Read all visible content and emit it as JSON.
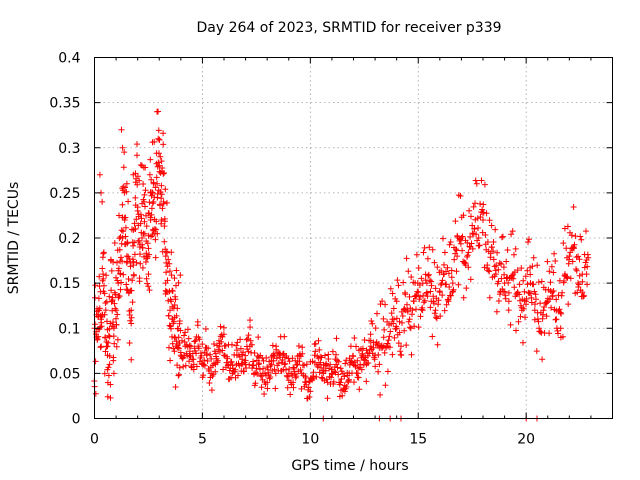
{
  "chart_data": {
    "type": "scatter",
    "title": "Day 264 of 2023, SRMTID for receiver p339",
    "xlabel": "GPS time / hours",
    "ylabel": "SRMTID / TECUs",
    "xlim": [
      0,
      24
    ],
    "ylim": [
      0,
      0.4
    ],
    "xticks": [
      0,
      5,
      10,
      15,
      20
    ],
    "xtick_labels": [
      "0",
      "5",
      "10",
      "15",
      "20"
    ],
    "yticks": [
      0,
      0.05,
      0.1,
      0.15,
      0.2,
      0.25,
      0.3,
      0.35,
      0.4
    ],
    "ytick_labels": [
      "0",
      "0.05",
      "0.1",
      "0.15",
      "0.2",
      "0.25",
      "0.3",
      "0.35",
      "0.4"
    ],
    "grid": true,
    "marker": "plus",
    "color": "#ff0000",
    "series": [
      {
        "name": "SRMTID",
        "x": [
          0.0,
          0.1,
          0.2,
          0.3,
          0.4,
          0.5,
          0.6,
          0.7,
          0.8,
          0.9,
          1.0,
          1.1,
          1.2,
          1.3,
          1.4,
          1.5,
          1.6,
          1.7,
          1.8,
          1.9,
          2.0,
          2.1,
          2.2,
          2.3,
          2.4,
          2.5,
          2.6,
          2.7,
          2.8,
          2.9,
          3.0,
          3.1,
          3.2,
          3.3,
          3.4,
          3.5,
          3.6,
          3.7,
          3.8,
          3.9,
          4.0,
          4.2,
          4.4,
          4.6,
          4.8,
          5.0,
          5.2,
          5.4,
          5.6,
          5.8,
          6.0,
          6.2,
          6.4,
          6.6,
          6.8,
          7.0,
          7.2,
          7.4,
          7.6,
          7.8,
          8.0,
          8.2,
          8.4,
          8.6,
          8.8,
          9.0,
          9.2,
          9.4,
          9.6,
          9.8,
          10.0,
          10.2,
          10.4,
          10.6,
          10.8,
          11.0,
          11.2,
          11.4,
          11.6,
          11.8,
          12.0,
          12.2,
          12.4,
          12.6,
          12.8,
          13.0,
          13.2,
          13.4,
          13.6,
          13.8,
          14.0,
          14.2,
          14.4,
          14.6,
          14.8,
          15.0,
          15.2,
          15.4,
          15.6,
          15.8,
          16.0,
          16.2,
          16.4,
          16.6,
          16.8,
          17.0,
          17.2,
          17.4,
          17.6,
          17.8,
          18.0,
          18.2,
          18.4,
          18.6,
          18.8,
          19.0,
          19.2,
          19.4,
          19.6,
          19.8,
          20.0,
          20.2,
          20.4,
          20.6,
          20.8,
          21.0,
          21.2,
          21.4,
          21.6,
          21.8,
          22.0,
          22.2,
          22.4,
          22.6,
          22.8,
          0.25,
          0.3,
          0.35,
          1.25,
          1.3,
          2.9,
          2.95,
          3.05,
          1.5,
          1.8,
          2.2,
          2.6,
          3.3,
          0.6,
          0.9,
          10.6,
          13.2,
          13.7,
          14.2,
          20.0,
          20.5
        ],
        "y": [
          0.1,
          0.09,
          0.12,
          0.11,
          0.16,
          0.09,
          0.08,
          0.06,
          0.13,
          0.1,
          0.12,
          0.15,
          0.16,
          0.2,
          0.22,
          0.18,
          0.14,
          0.12,
          0.17,
          0.21,
          0.23,
          0.19,
          0.2,
          0.24,
          0.18,
          0.16,
          0.22,
          0.25,
          0.21,
          0.26,
          0.28,
          0.22,
          0.24,
          0.18,
          0.14,
          0.12,
          0.11,
          0.09,
          0.08,
          0.09,
          0.07,
          0.08,
          0.07,
          0.06,
          0.08,
          0.06,
          0.07,
          0.05,
          0.06,
          0.08,
          0.07,
          0.06,
          0.05,
          0.07,
          0.06,
          0.06,
          0.08,
          0.05,
          0.06,
          0.05,
          0.04,
          0.06,
          0.05,
          0.07,
          0.06,
          0.05,
          0.04,
          0.06,
          0.05,
          0.04,
          0.03,
          0.07,
          0.06,
          0.05,
          0.04,
          0.05,
          0.06,
          0.04,
          0.03,
          0.05,
          0.06,
          0.05,
          0.07,
          0.06,
          0.08,
          0.07,
          0.06,
          0.09,
          0.08,
          0.11,
          0.1,
          0.08,
          0.12,
          0.11,
          0.13,
          0.14,
          0.12,
          0.15,
          0.13,
          0.12,
          0.14,
          0.16,
          0.13,
          0.15,
          0.18,
          0.2,
          0.17,
          0.19,
          0.21,
          0.2,
          0.22,
          0.17,
          0.19,
          0.16,
          0.14,
          0.15,
          0.13,
          0.16,
          0.14,
          0.12,
          0.13,
          0.15,
          0.12,
          0.1,
          0.12,
          0.13,
          0.14,
          0.11,
          0.1,
          0.16,
          0.18,
          0.19,
          0.15,
          0.14,
          0.16,
          0.27,
          0.25,
          0.24,
          0.32,
          0.3,
          0.34,
          0.31,
          0.29,
          0.26,
          0.27,
          0.28,
          0.25,
          0.15,
          0.07,
          0.05,
          0.0,
          0.0,
          0.0,
          0.0,
          0.0,
          0.0
        ],
        "extra_samples_note": "dense scatter of hundreds of '+' markers around these values"
      }
    ]
  }
}
